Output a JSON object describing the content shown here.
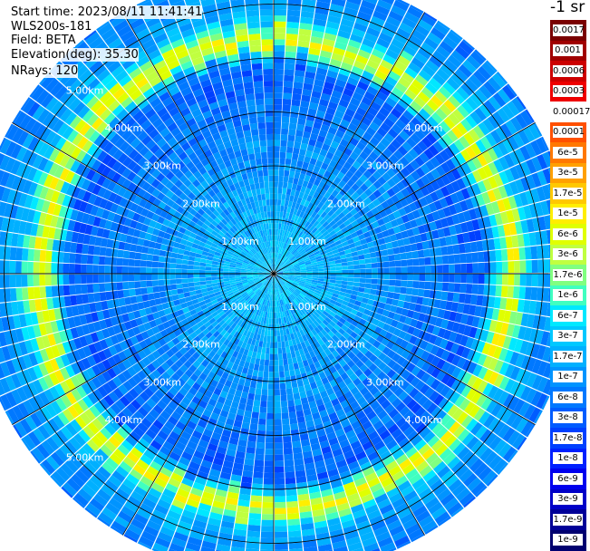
{
  "info": {
    "start_time": "Start time: 2023/08/11 11:41:41",
    "instrument": "WLS200s-181",
    "field": "Field: BETA",
    "elevation": "Elevation(deg): 35.30",
    "nrays": "NRays: 120"
  },
  "chart_data": {
    "type": "heatmap",
    "projection": "polar-ppi",
    "rays": 120,
    "elevation_deg": 35.3,
    "range_max_km": 5.6,
    "range_ring_labels_km": [
      "1.00km",
      "2.00km",
      "3.00km",
      "4.00km",
      "5.00km"
    ],
    "colorbar": {
      "title": "-1 sr",
      "scale": "log",
      "labels": [
        "0.0017",
        "0.001",
        "0.0006",
        "0.0003",
        "0.00017",
        "0.0001",
        "6e-5",
        "3e-5",
        "1.7e-5",
        "1e-5",
        "6e-6",
        "3e-6",
        "1.7e-6",
        "1e-6",
        "6e-7",
        "3e-7",
        "1.7e-7",
        "1e-7",
        "6e-8",
        "3e-8",
        "1.7e-8",
        "1e-8",
        "6e-9",
        "3e-9",
        "1.7e-9",
        "1e-9"
      ],
      "colors": [
        "#7a0000",
        "#a00000",
        "#cc0000",
        "#ee0000",
        "#ffffff",
        "#ff5000",
        "#ff7800",
        "#ffa000",
        "#ffc800",
        "#ffee00",
        "#e0ff00",
        "#c0ff40",
        "#80ff80",
        "#40ffc0",
        "#00e8ff",
        "#00c8ff",
        "#00b0ff",
        "#0094ff",
        "#0078ff",
        "#005cff",
        "#0040ff",
        "#0020ff",
        "#0000ee",
        "#0000c8",
        "#000098",
        "#000070"
      ]
    },
    "profile": [
      {
        "range_km": 0.0,
        "level": 15
      },
      {
        "range_km": 1.0,
        "level": 16
      },
      {
        "range_km": 2.0,
        "level": 17
      },
      {
        "range_km": 3.0,
        "level": 18
      },
      {
        "range_km": 3.8,
        "level": 19
      },
      {
        "range_km": 4.3,
        "level": 9
      },
      {
        "range_km": 4.7,
        "level": 16
      },
      {
        "range_km": 5.6,
        "level": 18
      }
    ]
  }
}
